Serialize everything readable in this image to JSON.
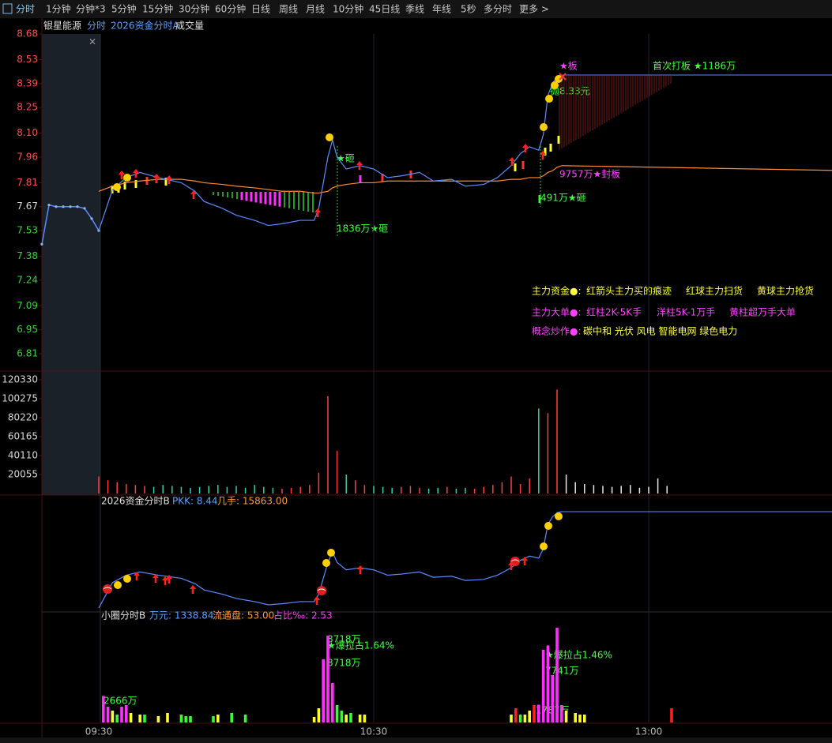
{
  "toolbar": {
    "tabs": [
      "分时",
      "1分钟",
      "分钟*3",
      "5分钟",
      "15分钟",
      "30分钟",
      "60分钟",
      "日线",
      "周线",
      "月线",
      "10分钟",
      "45日线",
      "季线",
      "年线",
      "5秒",
      "多分时",
      "更多 >"
    ]
  },
  "header": {
    "stock": "银星能源",
    "mode": "分时",
    "indicator": "2026资金分时A",
    "volume": "成交量"
  },
  "price_panel": {
    "ylim": [
      6.81,
      8.68
    ],
    "yticks": [
      8.68,
      8.53,
      8.39,
      8.25,
      {
        "value": 8.1,
        "label": "8.10"
      },
      7.96,
      7.81,
      7.67,
      7.53,
      7.38,
      7.24,
      7.09,
      6.95,
      6.81
    ],
    "ytick_colors": [
      "#ff4d4d",
      "#ff4d4d",
      "#ff4d4d",
      "#ff4d4d",
      "#ff4d4d",
      "#ff4d4d",
      "#ff4d4d",
      "#d8d8d8",
      "#3cd23c",
      "#3cd23c",
      "#3cd23c",
      "#3cd23c",
      "#3cd23c",
      "#3cd23c"
    ],
    "xticks": [
      {
        "value": 0,
        "label": "09:30"
      },
      {
        "value": 60,
        "label": "10:30"
      },
      {
        "value": 120,
        "label": "13:00"
      }
    ],
    "pre_market": [
      7.45,
      7.68,
      7.67,
      7.67,
      7.67,
      7.67,
      7.66,
      7.6,
      7.53
    ],
    "minutes": [
      0,
      3,
      6,
      9,
      13,
      18,
      21,
      23,
      27,
      30,
      34,
      37,
      40,
      44,
      47,
      48,
      50,
      51,
      52,
      54,
      57,
      60,
      63,
      66,
      70,
      73,
      77,
      80,
      84,
      87,
      90,
      92,
      94,
      96,
      97,
      98,
      99,
      100,
      101
    ],
    "price": [
      7.53,
      7.77,
      7.84,
      7.87,
      7.84,
      7.81,
      7.76,
      7.7,
      7.66,
      7.62,
      7.59,
      7.56,
      7.57,
      7.59,
      7.59,
      7.66,
      7.96,
      8.06,
      7.96,
      7.89,
      7.91,
      7.89,
      7.84,
      7.85,
      7.87,
      7.82,
      7.83,
      7.79,
      7.8,
      7.84,
      7.91,
      7.98,
      8.02,
      8.0,
      8.09,
      8.32,
      8.39,
      8.43,
      8.44
    ],
    "avg": [
      7.76,
      7.79,
      7.81,
      7.82,
      7.83,
      7.83,
      7.82,
      7.81,
      7.8,
      7.79,
      7.78,
      7.77,
      7.76,
      7.76,
      7.75,
      7.75,
      7.76,
      7.78,
      7.79,
      7.8,
      7.81,
      7.81,
      7.82,
      7.82,
      7.82,
      7.82,
      7.82,
      7.82,
      7.82,
      7.82,
      7.83,
      7.83,
      7.84,
      7.84,
      7.85,
      7.87,
      7.88,
      7.9,
      7.91
    ],
    "annotations": {
      "board": "★板",
      "first_board": "首次打板 ★1186万",
      "sell": "抛8.33元",
      "smash1": "★砸",
      "seal": "9757万★封板",
      "smash2": "491万★砸",
      "smash3": "1836万★砸"
    }
  },
  "legend": {
    "row1": {
      "title": "主力资金●:",
      "items": [
        "红箭头主力买的痕迹",
        "红球主力扫货",
        "黄球主力抢货"
      ]
    },
    "row2": {
      "title": "主力大单●:",
      "items": [
        "红柱2K-5K手",
        "洋柱5K-1万手",
        "黄柱超万手大单"
      ]
    },
    "row3": {
      "title": "概念炒作●:",
      "items": [
        "碳中和 光伏 风电 智能电网 绿色电力"
      ]
    }
  },
  "volume_panel": {
    "ylim": [
      0,
      120330
    ],
    "yticks": [
      120330,
      100275,
      80220,
      60165,
      40110,
      20055
    ],
    "values": [
      18000,
      14000,
      12000,
      10000,
      9000,
      8000,
      7000,
      9000,
      8000,
      7000,
      6000,
      7000,
      8000,
      9000,
      7000,
      8000,
      6000,
      9000,
      7000,
      6000,
      5000,
      6000,
      7000,
      9000,
      22000,
      103000,
      45000,
      20000,
      14000,
      9000,
      8000,
      7000,
      6000,
      7000,
      8000,
      6000,
      5000,
      6000,
      7000,
      5000,
      6000,
      5000,
      7000,
      9000,
      12000,
      18000,
      10000,
      16000,
      90000,
      85000,
      110000,
      20000,
      12000,
      10000,
      9000,
      8000,
      7000,
      8000,
      9000,
      6000,
      7000,
      16000,
      8000
    ]
  },
  "panel_b": {
    "title": "2026资金分时B",
    "pkk": "PKK: 8.44",
    "hands": "几手: 15863.00"
  },
  "panel_c": {
    "title": "小圈分时B",
    "amount": "万元: 1338.84",
    "float": "流通盘: 53.00",
    "ratio": "占比‰: 2.53",
    "minutes": [
      1,
      2,
      3,
      4,
      5,
      6,
      7,
      9,
      10,
      13,
      15,
      18,
      19,
      20,
      25,
      26,
      29,
      32,
      47,
      48,
      49,
      50,
      51,
      52,
      53,
      54,
      55,
      57,
      58,
      90,
      91,
      92,
      93,
      94,
      95,
      96,
      97,
      98,
      99,
      100,
      101,
      102,
      104,
      105,
      106,
      125
    ],
    "values": [
      2666,
      1586,
      1190,
      793,
      1586,
      1745,
      952,
      793,
      793,
      634,
      952,
      793,
      634,
      634,
      634,
      793,
      952,
      793,
      555,
      1427,
      6344,
      8718,
      3965,
      1745,
      1190,
      793,
      952,
      793,
      793,
      793,
      1427,
      793,
      793,
      1190,
      1745,
      1787,
      7296,
      7741,
      4758,
      9516,
      1745,
      1190,
      952,
      793,
      793,
      1427
    ],
    "colors": [
      "#ff30ff",
      "#ff30ff",
      "#ffff30",
      "#30ff30",
      "#ff30ff",
      "#ff30ff",
      "#ffff30",
      "#ffff30",
      "#30ff30",
      "#ffff30",
      "#ffff30",
      "#30ff30",
      "#30ff30",
      "#30ff30",
      "#30ff30",
      "#ffff30",
      "#30ff30",
      "#30ff30",
      "#ffff30",
      "#ffff30",
      "#ff30ff",
      "#ff30ff",
      "#ff30ff",
      "#30ff30",
      "#30ff30",
      "#ffff30",
      "#30ff30",
      "#ffff30",
      "#ffff30",
      "#ffff30",
      "#ff2020",
      "#30ff30",
      "#ffff30",
      "#ffff30",
      "#ff2020",
      "#ff30ff",
      "#ff30ff",
      "#ff30ff",
      "#ff30ff",
      "#ff30ff",
      "#ff30ff",
      "#ffff30",
      "#ffff30",
      "#ffff30",
      "#ffff30",
      "#ff2020"
    ],
    "labels": {
      "l1": "2666万",
      "l2": "8718万",
      "l3": "★爆拉占1.64%",
      "l4": "8718万",
      "l5": "★爆拉占1.46%",
      "l6": "7741万",
      "l7": "1787万"
    }
  }
}
